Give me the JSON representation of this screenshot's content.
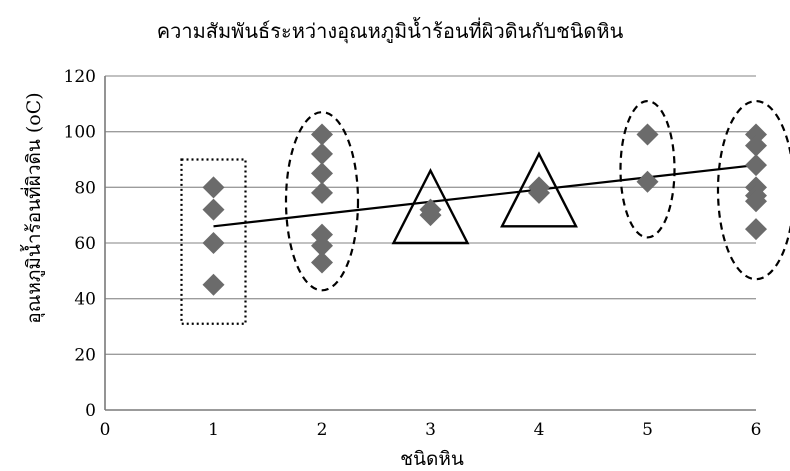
{
  "chart_data": {
    "type": "scatter",
    "title": "ความสัมพันธ์ระหว่างอุณหภูมิน้ำร้อนที่ผิวดินกับชนิดหิน",
    "xlabel": "ชนิดหิน",
    "ylabel": "อุณหภูมิน้ำร้อนที่ผิวดิน (oC)",
    "xlim": [
      0,
      6
    ],
    "ylim": [
      0,
      120
    ],
    "x_ticks": [
      "0",
      "1",
      "2",
      "3",
      "4",
      "5",
      "6"
    ],
    "y_ticks": [
      "0",
      "20",
      "40",
      "60",
      "80",
      "100",
      "120"
    ],
    "grid": "horizontal",
    "point_color": "#6b6b6b",
    "points": [
      {
        "x": 1,
        "y": 80
      },
      {
        "x": 1,
        "y": 72
      },
      {
        "x": 1,
        "y": 60
      },
      {
        "x": 1,
        "y": 45
      },
      {
        "x": 2,
        "y": 99
      },
      {
        "x": 2,
        "y": 92
      },
      {
        "x": 2,
        "y": 85
      },
      {
        "x": 2,
        "y": 78
      },
      {
        "x": 2,
        "y": 63
      },
      {
        "x": 2,
        "y": 59
      },
      {
        "x": 2,
        "y": 53
      },
      {
        "x": 3,
        "y": 72
      },
      {
        "x": 3,
        "y": 70
      },
      {
        "x": 4,
        "y": 80
      },
      {
        "x": 4,
        "y": 78
      },
      {
        "x": 5,
        "y": 99
      },
      {
        "x": 5,
        "y": 82
      },
      {
        "x": 6,
        "y": 99
      },
      {
        "x": 6,
        "y": 95
      },
      {
        "x": 6,
        "y": 88
      },
      {
        "x": 6,
        "y": 80
      },
      {
        "x": 6,
        "y": 77
      },
      {
        "x": 6,
        "y": 75
      },
      {
        "x": 6,
        "y": 65
      }
    ],
    "trendline": {
      "from": {
        "x": 1,
        "y": 66
      },
      "to": {
        "x": 6,
        "y": 88
      }
    },
    "groups": [
      {
        "x": 1,
        "shape": "dotted-rectangle",
        "y_range": [
          31,
          90
        ]
      },
      {
        "x": 2,
        "shape": "dashed-ellipse",
        "y_range": [
          43,
          107
        ]
      },
      {
        "x": 3,
        "shape": "triangle",
        "y_range": [
          60,
          86
        ]
      },
      {
        "x": 4,
        "shape": "triangle",
        "y_range": [
          66,
          92
        ]
      },
      {
        "x": 5,
        "shape": "dashed-ellipse",
        "y_range": [
          62,
          111
        ]
      },
      {
        "x": 6,
        "shape": "dashed-ellipse",
        "y_range": [
          47,
          111
        ]
      }
    ]
  }
}
